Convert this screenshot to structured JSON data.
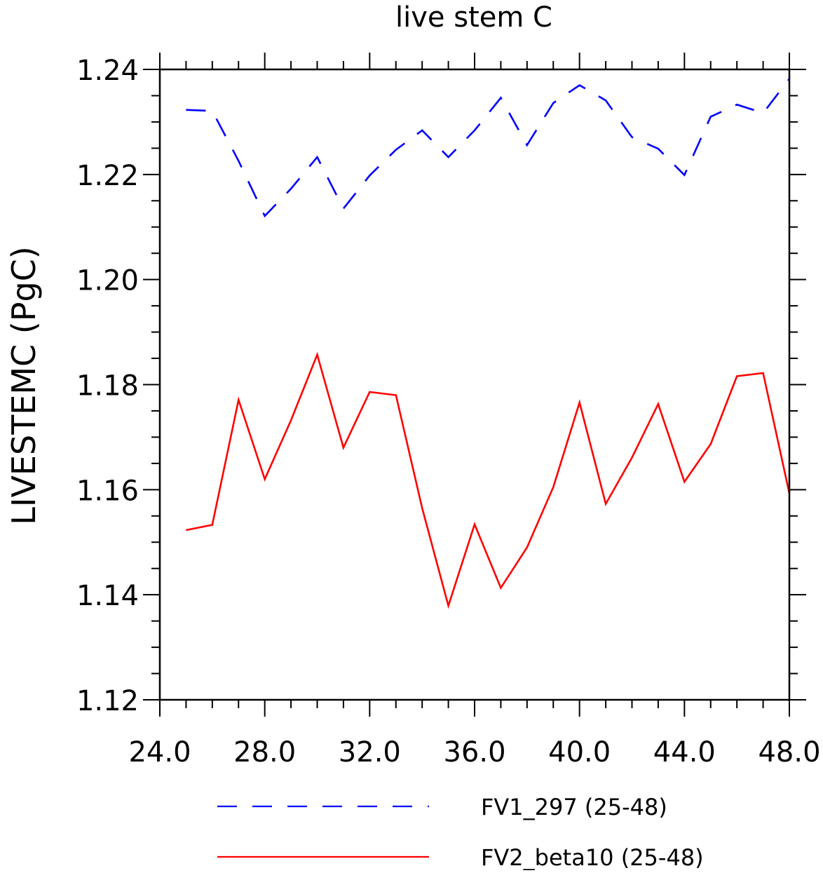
{
  "chart_data": {
    "type": "line",
    "title": "live stem C",
    "xlabel": "",
    "ylabel": "LIVESTEMC  (PgC)",
    "xlim": [
      24.0,
      48.0
    ],
    "ylim": [
      1.12,
      1.24
    ],
    "x_ticks": [
      "24.0",
      "28.0",
      "32.0",
      "36.0",
      "40.0",
      "44.0",
      "48.0"
    ],
    "y_ticks": [
      "1.12",
      "1.14",
      "1.16",
      "1.18",
      "1.20",
      "1.22",
      "1.24"
    ],
    "grid": false,
    "legend_position": "bottom",
    "x": [
      25,
      26,
      27,
      28,
      29,
      30,
      31,
      32,
      33,
      34,
      35,
      36,
      37,
      38,
      39,
      40,
      41,
      42,
      43,
      44,
      45,
      46,
      47,
      48
    ],
    "series": [
      {
        "name": "FV1_297 (25-48)",
        "color": "#0000ff",
        "dash": "dashed",
        "values": [
          1.2323,
          1.2321,
          1.2226,
          1.2121,
          1.2173,
          1.2233,
          1.2135,
          1.2198,
          1.2247,
          1.2284,
          1.2233,
          1.2284,
          1.2346,
          1.2256,
          1.2336,
          1.237,
          1.2341,
          1.2271,
          1.2249,
          1.2199,
          1.231,
          1.2333,
          1.2317,
          1.2382
        ]
      },
      {
        "name": "FV2_beta10 (25-48)",
        "color": "#ff0000",
        "dash": "solid",
        "values": [
          1.1523,
          1.1533,
          1.1771,
          1.162,
          1.1732,
          1.1857,
          1.168,
          1.1786,
          1.178,
          1.1565,
          1.1379,
          1.1534,
          1.1413,
          1.149,
          1.1605,
          1.1766,
          1.1573,
          1.1661,
          1.1763,
          1.1615,
          1.1687,
          1.1816,
          1.1822,
          1.1593
        ]
      }
    ]
  }
}
